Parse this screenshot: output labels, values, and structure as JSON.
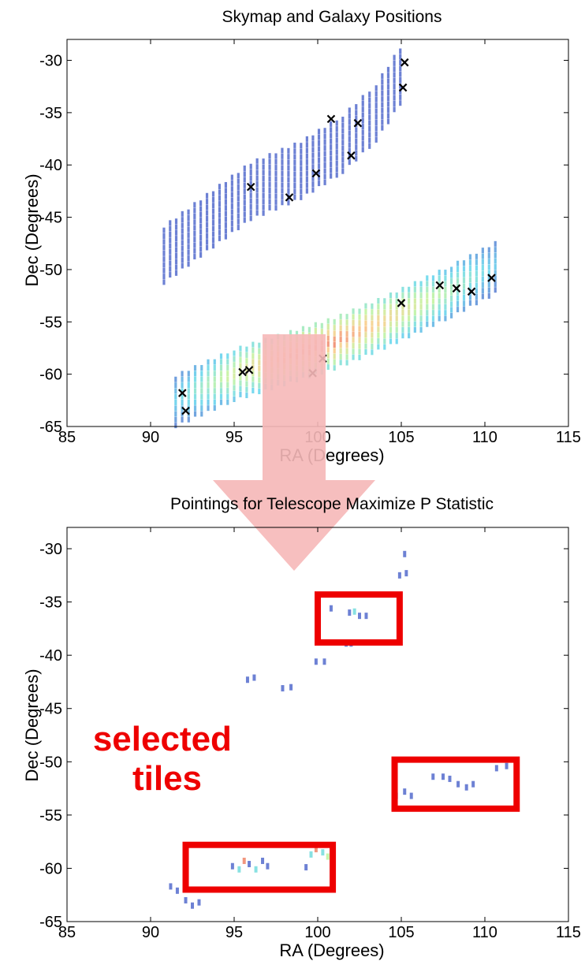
{
  "chart_data": [
    {
      "type": "scatter",
      "title": "Skymap and Galaxy Positions",
      "xlabel": "RA (Degrees)",
      "ylabel": "Dec (Degrees)",
      "xlim": [
        85,
        115
      ],
      "ylim": [
        -65,
        -28
      ],
      "xticks": [
        "85",
        "90",
        "95",
        "100",
        "105",
        "110",
        "115"
      ],
      "yticks": [
        "-30",
        "-35",
        "-40",
        "-45",
        "-50",
        "-55",
        "-60",
        "-65"
      ],
      "grid": false,
      "skymap_regions": [
        {
          "name": "north",
          "centerline": [
            [
              90.8,
              -48.6
            ],
            [
              93,
              -46
            ],
            [
              96,
              -42.5
            ],
            [
              99,
              -40.5
            ],
            [
              101.5,
              -38
            ],
            [
              103.5,
              -35
            ],
            [
              105.3,
              -30.6
            ]
          ],
          "half_width_dec": 2.6,
          "probability": 0.05
        },
        {
          "name": "south",
          "centerline": [
            [
              91.5,
              -62.5
            ],
            [
              95,
              -60
            ],
            [
              98,
              -58.5
            ],
            [
              101,
              -57
            ],
            [
              104,
              -55
            ],
            [
              108,
              -52
            ],
            [
              111,
              -49.5
            ]
          ],
          "half_width_dec": 2.4,
          "probability": [
            0.25,
            0.6,
            0.85,
            0.95,
            0.75,
            0.45,
            0.2
          ]
        }
      ],
      "galaxies": [
        {
          "x": 105.2,
          "y": -30.2
        },
        {
          "x": 105.1,
          "y": -32.6
        },
        {
          "x": 100.8,
          "y": -35.6
        },
        {
          "x": 102.4,
          "y": -36.0
        },
        {
          "x": 102.0,
          "y": -39.1
        },
        {
          "x": 99.9,
          "y": -40.8
        },
        {
          "x": 96.0,
          "y": -42.1
        },
        {
          "x": 98.3,
          "y": -43.1
        },
        {
          "x": 107.3,
          "y": -51.5
        },
        {
          "x": 108.3,
          "y": -51.8
        },
        {
          "x": 109.2,
          "y": -52.1
        },
        {
          "x": 110.4,
          "y": -50.8
        },
        {
          "x": 105.0,
          "y": -53.2
        },
        {
          "x": 100.3,
          "y": -58.5
        },
        {
          "x": 99.7,
          "y": -59.9
        },
        {
          "x": 95.5,
          "y": -59.8
        },
        {
          "x": 95.9,
          "y": -59.6
        },
        {
          "x": 91.9,
          "y": -61.8
        },
        {
          "x": 92.1,
          "y": -63.5
        }
      ]
    },
    {
      "type": "scatter",
      "title": "Pointings for Telescope Maximize P Statistic",
      "xlabel": "RA (Degrees)",
      "ylabel": "Dec (Degrees)",
      "xlim": [
        85,
        115
      ],
      "ylim": [
        -65,
        -28
      ],
      "xticks": [
        "85",
        "90",
        "95",
        "100",
        "105",
        "110",
        "115"
      ],
      "yticks": [
        "-30",
        "-35",
        "-40",
        "-45",
        "-50",
        "-55",
        "-60",
        "-65"
      ],
      "grid": false,
      "tiles": [
        {
          "x": 105.2,
          "y": -30.5,
          "p": 0.05
        },
        {
          "x": 104.9,
          "y": -32.5,
          "p": 0.05
        },
        {
          "x": 105.3,
          "y": -32.3,
          "p": 0.05
        },
        {
          "x": 100.8,
          "y": -35.6,
          "p": 0.05
        },
        {
          "x": 101.9,
          "y": -36.0,
          "p": 0.05
        },
        {
          "x": 102.2,
          "y": -35.9,
          "p": 0.3
        },
        {
          "x": 102.5,
          "y": -36.3,
          "p": 0.05
        },
        {
          "x": 102.9,
          "y": -36.3,
          "p": 0.05
        },
        {
          "x": 101.7,
          "y": -38.9,
          "p": 0.05
        },
        {
          "x": 102.0,
          "y": -38.9,
          "p": 0.05
        },
        {
          "x": 99.9,
          "y": -40.6,
          "p": 0.05
        },
        {
          "x": 100.4,
          "y": -40.6,
          "p": 0.05
        },
        {
          "x": 95.8,
          "y": -42.3,
          "p": 0.05
        },
        {
          "x": 96.2,
          "y": -42.1,
          "p": 0.05
        },
        {
          "x": 97.9,
          "y": -43.1,
          "p": 0.05
        },
        {
          "x": 98.4,
          "y": -43.0,
          "p": 0.05
        },
        {
          "x": 110.7,
          "y": -50.6,
          "p": 0.05
        },
        {
          "x": 111.3,
          "y": -50.4,
          "p": 0.05
        },
        {
          "x": 106.9,
          "y": -51.4,
          "p": 0.05
        },
        {
          "x": 107.5,
          "y": -51.4,
          "p": 0.05
        },
        {
          "x": 107.9,
          "y": -51.6,
          "p": 0.05
        },
        {
          "x": 108.4,
          "y": -52.1,
          "p": 0.05
        },
        {
          "x": 108.9,
          "y": -52.4,
          "p": 0.05
        },
        {
          "x": 109.3,
          "y": -52.1,
          "p": 0.05
        },
        {
          "x": 104.7,
          "y": -53.2,
          "p": 0.05
        },
        {
          "x": 105.2,
          "y": -52.8,
          "p": 0.05
        },
        {
          "x": 105.6,
          "y": -53.2,
          "p": 0.05
        },
        {
          "x": 94.9,
          "y": -59.8,
          "p": 0.05
        },
        {
          "x": 95.3,
          "y": -60.1,
          "p": 0.3
        },
        {
          "x": 95.6,
          "y": -59.3,
          "p": 0.9
        },
        {
          "x": 95.9,
          "y": -59.6,
          "p": 0.05
        },
        {
          "x": 96.3,
          "y": -60.1,
          "p": 0.3
        },
        {
          "x": 96.7,
          "y": -59.3,
          "p": 0.05
        },
        {
          "x": 97.0,
          "y": -59.8,
          "p": 0.05
        },
        {
          "x": 99.3,
          "y": -59.9,
          "p": 0.05
        },
        {
          "x": 99.6,
          "y": -58.7,
          "p": 0.3
        },
        {
          "x": 99.9,
          "y": -58.2,
          "p": 0.9
        },
        {
          "x": 100.3,
          "y": -58.5,
          "p": 0.3
        },
        {
          "x": 100.6,
          "y": -58.9,
          "p": 0.5
        },
        {
          "x": 91.2,
          "y": -61.7,
          "p": 0.05
        },
        {
          "x": 91.6,
          "y": -62.1,
          "p": 0.05
        },
        {
          "x": 92.1,
          "y": -63.0,
          "p": 0.05
        },
        {
          "x": 92.5,
          "y": -63.5,
          "p": 0.05
        },
        {
          "x": 92.9,
          "y": -63.2,
          "p": 0.05
        }
      ],
      "highlight_boxes": [
        {
          "x0": 100.0,
          "x1": 104.9,
          "y0": -34.3,
          "y1": -38.8
        },
        {
          "x0": 104.6,
          "x1": 111.9,
          "y0": -49.8,
          "y1": -54.4
        },
        {
          "x0": 92.1,
          "x1": 100.9,
          "y0": -57.8,
          "y1": -62.0
        }
      ],
      "annotation": "selected\ntiles"
    }
  ],
  "colors": {
    "tile_low": "#6a6acd",
    "galaxy_marker": "#000000",
    "arrow": "#f6b8b8",
    "highlight": "#ee0000",
    "annotation": "#ee0000"
  }
}
